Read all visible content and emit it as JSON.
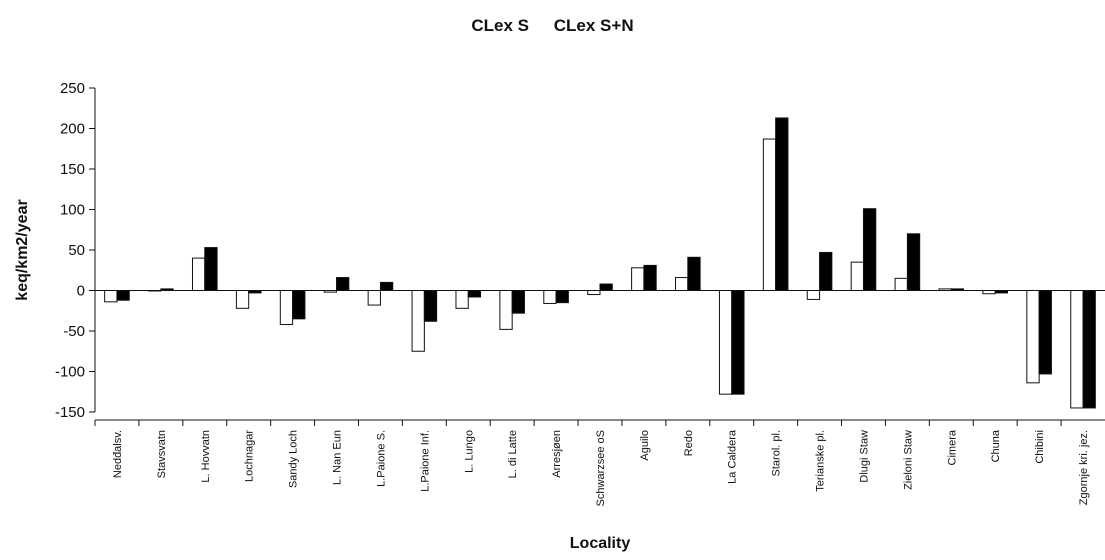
{
  "chart_data": {
    "type": "bar",
    "title_parts": [
      "CLex S",
      "CLex  S+N"
    ],
    "xlabel": "Locality",
    "ylabel": "keq/km2/year",
    "ylim": [
      -150,
      250
    ],
    "yticks": [
      250,
      200,
      150,
      100,
      50,
      0,
      -50,
      -100,
      -150
    ],
    "grid": false,
    "categories": [
      "Nedđalsv.",
      "Stavsvatn",
      "L. Hovvatn",
      "Lochnagar",
      "Sandy Loch",
      "L. Nan Eun",
      "L.Paione S.",
      "L.Paione Inf.",
      "L. Lungo",
      "L. di Latte",
      "Arresjøen",
      "Schwarzsee oS",
      "Aguilo",
      "Redo",
      "La Caldera",
      "Starol. pl.",
      "Terianske pl.",
      "Dlugi Staw",
      "Zieloni Staw",
      "Cimera",
      "Chuna",
      "Chibini",
      "Zgornje kri. jez."
    ],
    "series": [
      {
        "name": "CLex S",
        "color": "#ffffff",
        "values": [
          -14,
          0,
          40,
          -22,
          -42,
          -2,
          -18,
          -75,
          -22,
          -48,
          -16,
          -5,
          28,
          16,
          -128,
          187,
          -11,
          35,
          15,
          2,
          -4,
          -114,
          -145
        ]
      },
      {
        "name": "CLex  S+N",
        "color": "#000000",
        "values": [
          -12,
          2,
          53,
          -3,
          -35,
          16,
          10,
          -38,
          -8,
          -28,
          -15,
          8,
          31,
          41,
          -128,
          213,
          47,
          101,
          70,
          2,
          -3,
          -103,
          -145
        ]
      }
    ]
  }
}
